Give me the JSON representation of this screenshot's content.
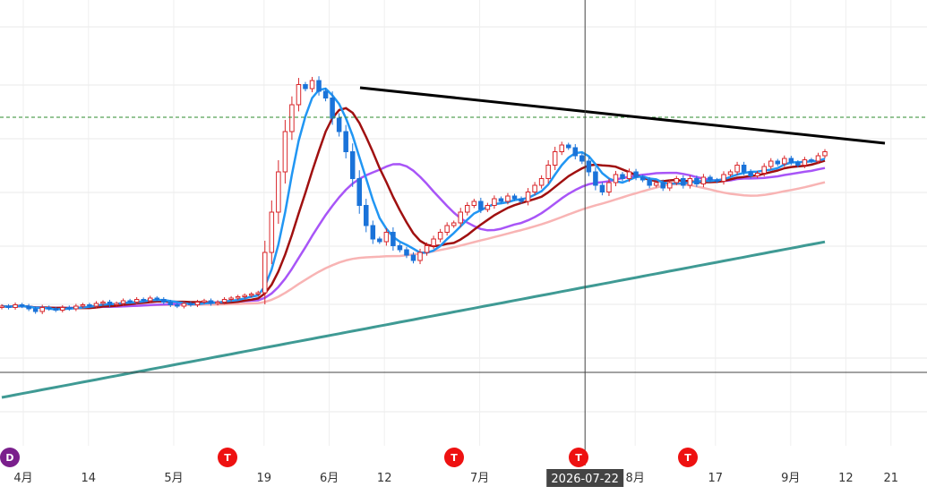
{
  "chart_data": {
    "type": "candlestick",
    "title": "",
    "xlabel": "",
    "ylabel": "",
    "x_ticks": [
      {
        "label": "4月",
        "date": "2026-04-01"
      },
      {
        "label": "14",
        "date": "2026-04-14"
      },
      {
        "label": "5月",
        "date": "2026-05-01"
      },
      {
        "label": "19",
        "date": "2026-05-19"
      },
      {
        "label": "6月",
        "date": "2026-06-01"
      },
      {
        "label": "12",
        "date": "2026-06-12"
      },
      {
        "label": "7月",
        "date": "2026-07-01"
      },
      {
        "label": "8月",
        "date": "2026-08-01"
      },
      {
        "label": "17",
        "date": "2026-08-17"
      },
      {
        "label": "9月",
        "date": "2026-09-01"
      },
      {
        "label": "12",
        "date": "2026-09-12"
      },
      {
        "label": "21",
        "date": "2026-09-21"
      }
    ],
    "crosshair": {
      "label": "2026-07-22"
    },
    "markers": [
      {
        "label": "D",
        "color": "#7a1f8c"
      },
      {
        "label": "T",
        "color": "#ee1111"
      },
      {
        "label": "T",
        "color": "#ee1111"
      },
      {
        "label": "T",
        "color": "#ee1111"
      },
      {
        "label": "T",
        "color": "#ee1111"
      }
    ],
    "colors": {
      "up": "#d9262a",
      "down": "#1a73d9",
      "ma5": "#2196f3",
      "ma10": "#a01010",
      "ma20": "#a855f7",
      "ma60": "#f8b4b4",
      "ma200": "#3f9a94",
      "trendline": "#000000",
      "resistance": "#2e8b2e"
    },
    "candles_close": [
      100,
      99,
      101,
      100,
      98,
      96,
      99,
      98,
      97,
      99,
      98,
      100,
      101,
      100,
      102,
      103,
      101,
      102,
      104,
      103,
      105,
      104,
      106,
      105,
      103,
      101,
      100,
      102,
      101,
      103,
      104,
      102,
      103,
      105,
      106,
      107,
      108,
      109,
      110,
      140,
      170,
      200,
      230,
      250,
      265,
      262,
      268,
      260,
      255,
      240,
      230,
      215,
      195,
      175,
      160,
      150,
      148,
      155,
      145,
      142,
      138,
      134,
      140,
      145,
      150,
      155,
      160,
      162,
      170,
      175,
      178,
      172,
      175,
      180,
      178,
      182,
      180,
      178,
      185,
      190,
      195,
      205,
      215,
      220,
      218,
      212,
      208,
      200,
      190,
      185,
      192,
      198,
      195,
      200,
      196,
      194,
      190,
      192,
      188,
      192,
      195,
      190,
      195,
      191,
      196,
      194,
      193,
      198,
      200,
      205,
      200,
      197,
      199,
      204,
      208,
      206,
      210,
      207,
      205,
      209,
      208,
      212,
      215
    ]
  }
}
